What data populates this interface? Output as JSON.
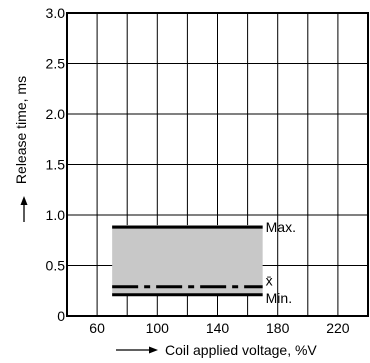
{
  "chart_data": {
    "type": "line",
    "xlabel": "Coil applied voltage, %V",
    "ylabel": "Release time, ms",
    "xlim": [
      40,
      240
    ],
    "ylim": [
      0,
      3.0
    ],
    "x_ticks": [
      60,
      100,
      140,
      180,
      220
    ],
    "y_ticks": [
      0,
      0.5,
      1.0,
      1.5,
      2.0,
      2.5,
      3.0
    ],
    "y_tick_labels": [
      "0",
      "0.5",
      "1.0",
      "1.5",
      "2.0",
      "2.5",
      "3.0"
    ],
    "grid": true,
    "shaded_range": {
      "x": [
        70,
        170
      ],
      "y": [
        0.2,
        0.9
      ],
      "color": "#c8c8c8"
    },
    "series": [
      {
        "name": "Max.",
        "x": [
          70,
          170
        ],
        "y": [
          0.88,
          0.88
        ],
        "style": "solid"
      },
      {
        "name": "x̄",
        "x": [
          70,
          170
        ],
        "y": [
          0.29,
          0.29
        ],
        "style": "dashdot"
      },
      {
        "name": "Min.",
        "x": [
          70,
          170
        ],
        "y": [
          0.21,
          0.21
        ],
        "style": "solid"
      }
    ]
  }
}
